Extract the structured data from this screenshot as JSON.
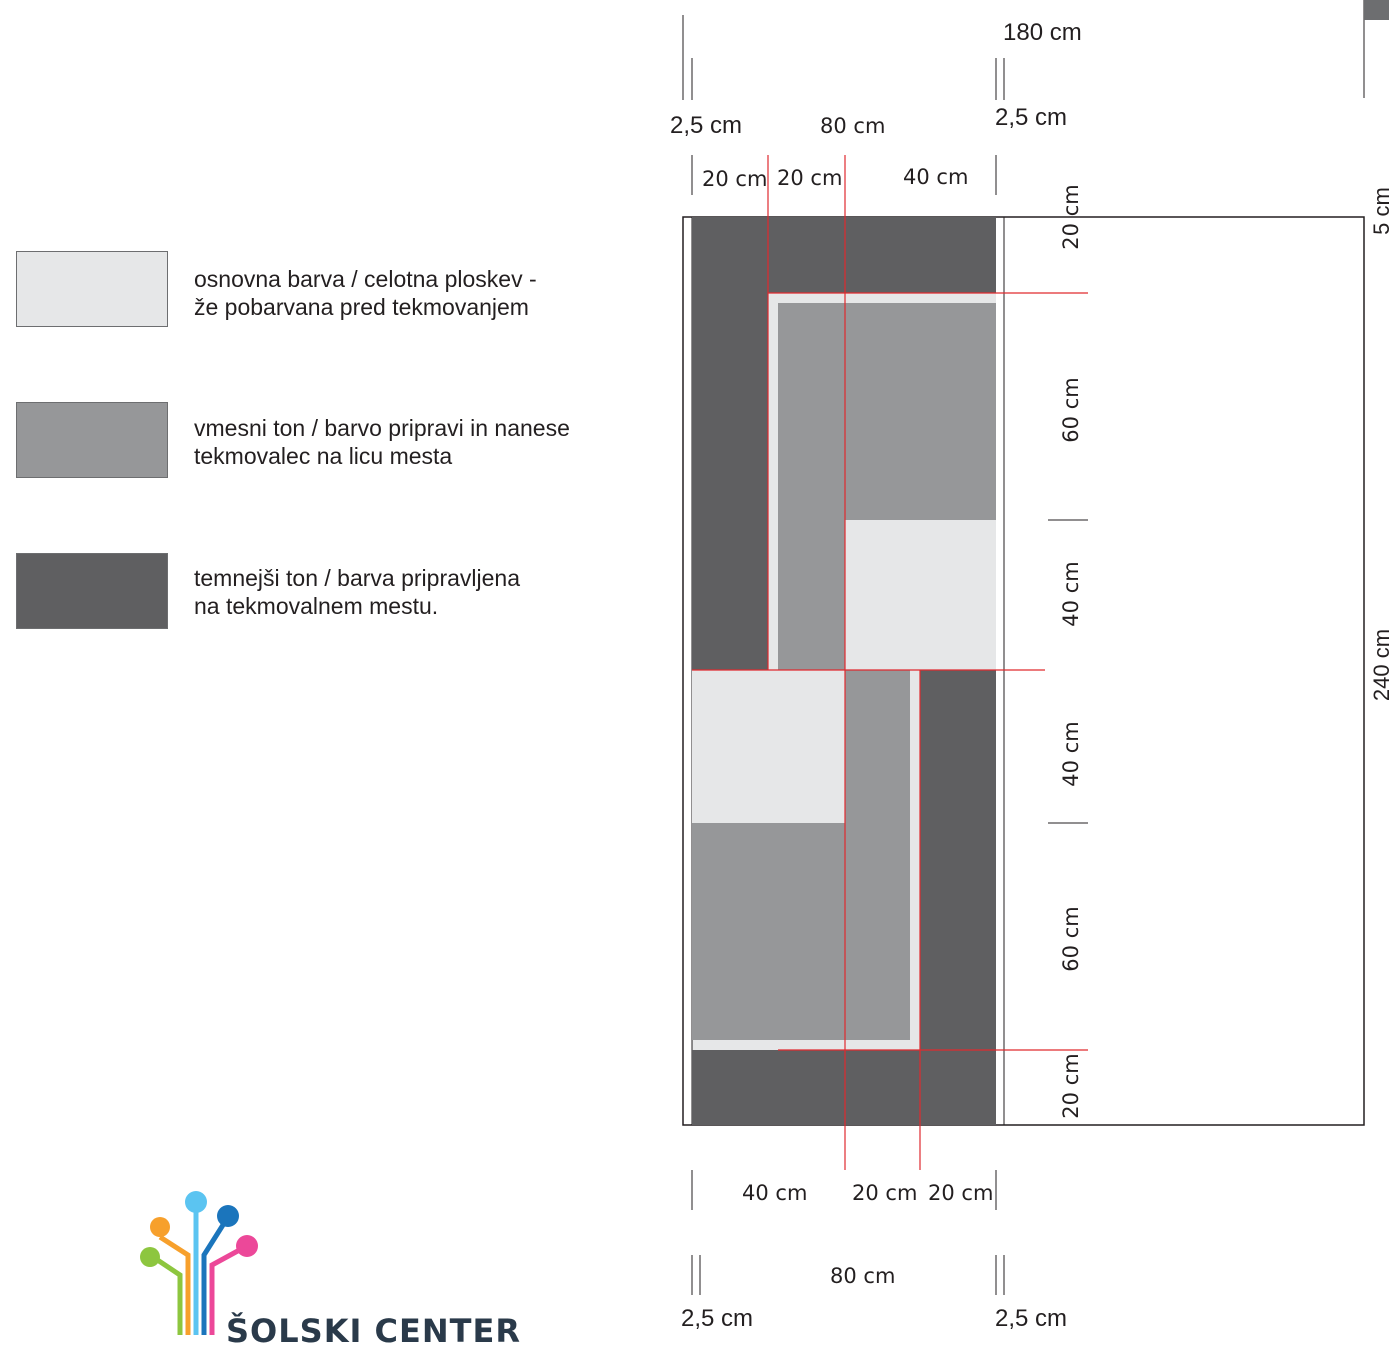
{
  "colors": {
    "light": "#e6e7e8",
    "medium": "#969799",
    "dark": "#5f5f61",
    "guide": "#e02a2f"
  },
  "legend": [
    {
      "text": "osnovna barva / celotna ploskev -\nže pobarvana pred tekmovanjem",
      "color": "light"
    },
    {
      "text": "vmesni ton / barvo pripravi in nanese\ntekmovalec na licu mesta",
      "color": "medium"
    },
    {
      "text": "temnejši ton / barva pripravljena\nna tekmovalnem mestu.",
      "color": "dark"
    }
  ],
  "dimensions": {
    "total_width": "180 cm",
    "margin_left_top": "2,5 cm",
    "margin_right_top": "2,5 cm",
    "panel_width_top": "80 cm",
    "top_segments": [
      "20 cm",
      "20 cm",
      "40 cm"
    ],
    "bottom_segments": [
      "40 cm",
      "20 cm",
      "20 cm"
    ],
    "panel_width_bottom": "80 cm",
    "margin_left_bottom": "2,5 cm",
    "margin_right_bottom": "2,5 cm",
    "vertical_segments": [
      "20 cm",
      "60 cm",
      "40 cm",
      "40 cm",
      "60 cm",
      "20 cm"
    ],
    "total_height": "240 cm",
    "edge": "5 cm"
  },
  "logo": {
    "text": "ŠOLSKI CENTER"
  }
}
